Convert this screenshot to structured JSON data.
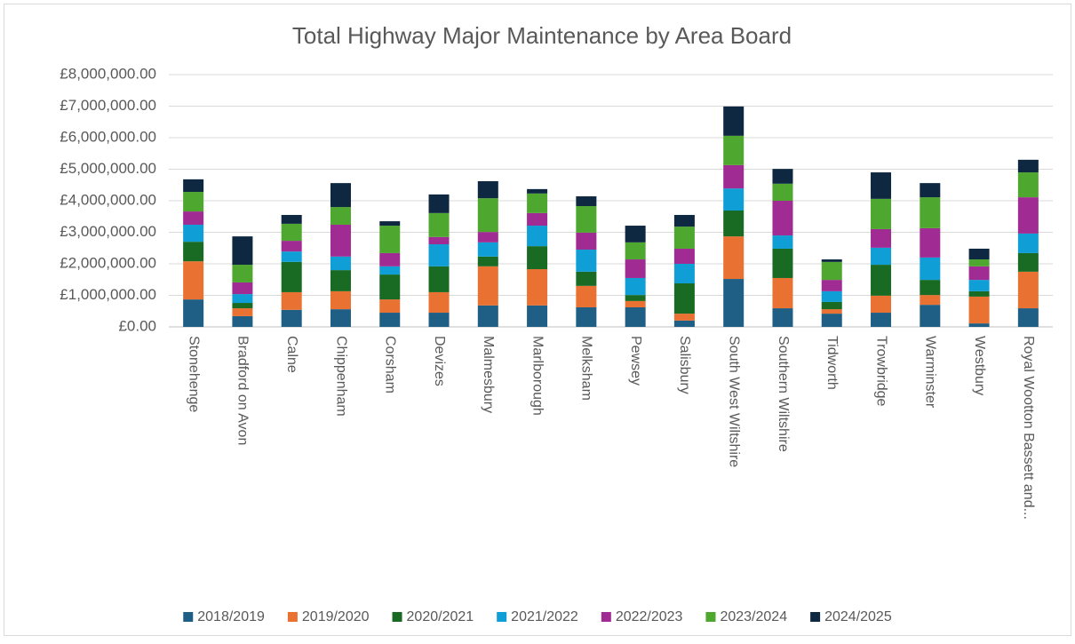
{
  "chart_data": {
    "type": "bar",
    "stacked": true,
    "title": "Total Highway Major Maintenance by Area Board",
    "categories": [
      "Stonehenge",
      "Bradford on Avon",
      "Calne",
      "Chippenham",
      "Corsham",
      "Devizes",
      "Malmesbury",
      "Marlborough",
      "Melksham",
      "Pewsey",
      "Salisbury",
      "South West Wiltshire",
      "Southern Wiltshire",
      "Tidworth",
      "Trowbridge",
      "Warminster",
      "Westbury",
      "Royal Wootton Bassett and..."
    ],
    "series": [
      {
        "name": "2018/2019",
        "color": "#1f5f86",
        "values": [
          870000,
          340000,
          540000,
          560000,
          450000,
          450000,
          680000,
          680000,
          620000,
          620000,
          200000,
          1520000,
          590000,
          420000,
          450000,
          700000,
          110000,
          590000
        ]
      },
      {
        "name": "2019/2020",
        "color": "#e97132",
        "values": [
          1210000,
          250000,
          560000,
          570000,
          420000,
          650000,
          1240000,
          1150000,
          680000,
          200000,
          220000,
          1350000,
          960000,
          140000,
          540000,
          310000,
          850000,
          1160000
        ]
      },
      {
        "name": "2020/2021",
        "color": "#196b24",
        "values": [
          620000,
          170000,
          960000,
          670000,
          790000,
          820000,
          310000,
          730000,
          450000,
          190000,
          960000,
          820000,
          930000,
          230000,
          980000,
          480000,
          170000,
          590000
        ]
      },
      {
        "name": "2021/2022",
        "color": "#0f9ed5",
        "values": [
          540000,
          280000,
          330000,
          430000,
          260000,
          700000,
          450000,
          650000,
          700000,
          540000,
          620000,
          700000,
          420000,
          340000,
          540000,
          710000,
          360000,
          620000
        ]
      },
      {
        "name": "2022/2023",
        "color": "#a02b93",
        "values": [
          420000,
          370000,
          340000,
          1010000,
          420000,
          230000,
          330000,
          400000,
          540000,
          590000,
          480000,
          740000,
          1100000,
          360000,
          590000,
          930000,
          430000,
          1150000
        ]
      },
      {
        "name": "2023/2024",
        "color": "#4ea72e",
        "values": [
          620000,
          560000,
          540000,
          560000,
          870000,
          760000,
          1070000,
          620000,
          840000,
          540000,
          700000,
          930000,
          540000,
          570000,
          960000,
          980000,
          220000,
          790000
        ]
      },
      {
        "name": "2024/2025",
        "color": "#0e2841",
        "values": [
          400000,
          900000,
          280000,
          760000,
          140000,
          590000,
          540000,
          140000,
          310000,
          530000,
          370000,
          930000,
          470000,
          80000,
          840000,
          450000,
          340000,
          400000
        ]
      }
    ],
    "ylim": [
      0,
      8000000
    ],
    "yticks": [
      {
        "value": 0,
        "label": "£0.00"
      },
      {
        "value": 1000000,
        "label": "£1,000,000.00"
      },
      {
        "value": 2000000,
        "label": "£2,000,000.00"
      },
      {
        "value": 3000000,
        "label": "£3,000,000.00"
      },
      {
        "value": 4000000,
        "label": "£4,000,000.00"
      },
      {
        "value": 5000000,
        "label": "£5,000,000.00"
      },
      {
        "value": 6000000,
        "label": "£6,000,000.00"
      },
      {
        "value": 7000000,
        "label": "£7,000,000.00"
      },
      {
        "value": 8000000,
        "label": "£8,000,000.00"
      }
    ],
    "grid": true,
    "legend": "bottom"
  }
}
